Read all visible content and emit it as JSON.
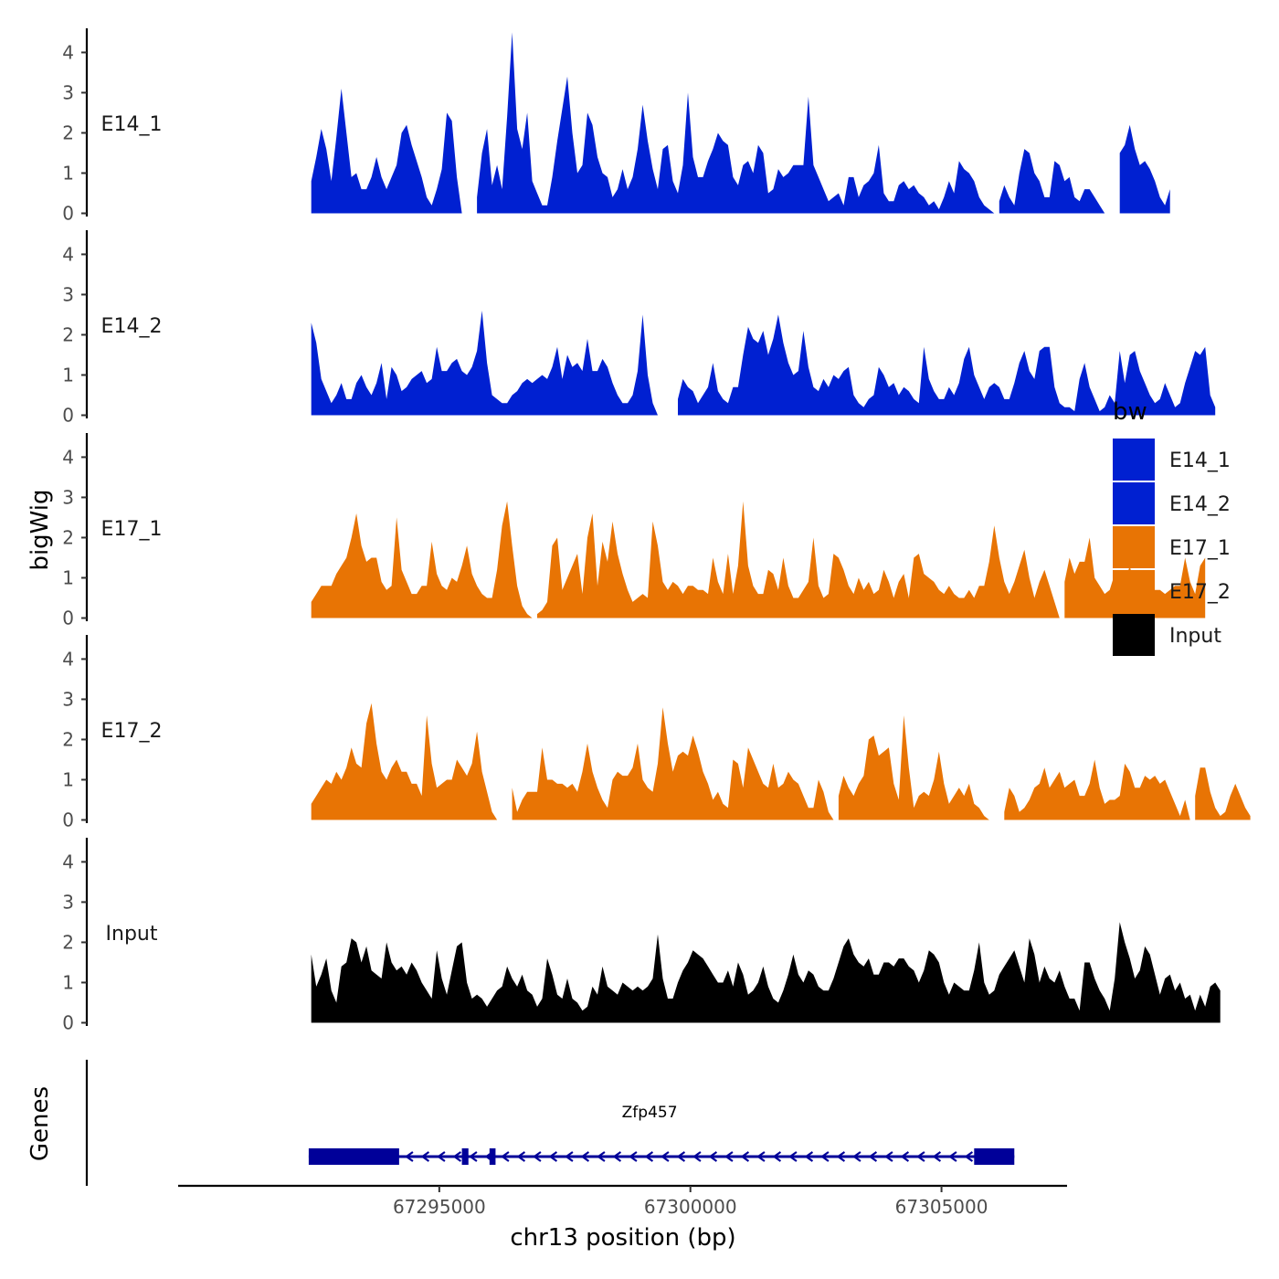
{
  "chart_data": {
    "type": "area",
    "region": "chr13",
    "xlabel": "chr13 position (bp)",
    "ylabel": "bigWig",
    "xlim": [
      67289800,
      67307500
    ],
    "ylim": [
      0,
      4.6
    ],
    "x_tick_values": [
      67295000,
      67300000,
      67305000
    ],
    "x_tick_labels": [
      "67295000",
      "67300000",
      "67305000"
    ],
    "y_tick_values": [
      0,
      1,
      2,
      3,
      4
    ],
    "y_tick_labels": [
      "0",
      "1",
      "2",
      "3",
      "4"
    ],
    "genes_label": "Genes",
    "legend": {
      "title": "bw",
      "position": "right"
    },
    "track_start": 67292450,
    "bin_size_bp": 100,
    "series": [
      {
        "name": "E14_1",
        "color": "#0020D1",
        "values": [
          0.8,
          1.4,
          2.1,
          1.6,
          0.8,
          1.9,
          3.1,
          2.0,
          0.9,
          1.0,
          0.6,
          0.6,
          0.9,
          1.4,
          0.9,
          0.6,
          0.9,
          1.2,
          2.0,
          2.2,
          1.7,
          1.3,
          0.9,
          0.4,
          0.2,
          0.6,
          1.1,
          2.5,
          2.3,
          0.9,
          0,
          0,
          0,
          0.4,
          1.5,
          2.1,
          0.7,
          1.2,
          0.6,
          2.4,
          4.5,
          2.1,
          1.6,
          2.5,
          0.8,
          0.5,
          0.2,
          0.2,
          0.9,
          1.8,
          2.6,
          3.4,
          2.0,
          1.0,
          1.2,
          2.5,
          2.2,
          1.4,
          1.0,
          0.9,
          0.4,
          0.6,
          1.1,
          0.6,
          0.9,
          1.6,
          2.7,
          1.8,
          1.1,
          0.6,
          1.6,
          1.7,
          0.8,
          0.5,
          1.2,
          3.0,
          1.4,
          0.9,
          0.9,
          1.3,
          1.6,
          2.0,
          1.8,
          1.7,
          0.9,
          0.7,
          1.2,
          1.3,
          1.0,
          1.7,
          1.5,
          0.5,
          0.6,
          1.1,
          0.9,
          1.0,
          1.2,
          1.2,
          1.2,
          2.9,
          1.2,
          0.9,
          0.6,
          0.3,
          0.4,
          0.5,
          0.2,
          0.9,
          0.9,
          0.4,
          0.7,
          0.8,
          1.0,
          1.7,
          0.5,
          0.3,
          0.3,
          0.7,
          0.8,
          0.6,
          0.7,
          0.5,
          0.4,
          0.2,
          0.3,
          0.1,
          0.4,
          0.8,
          0.5,
          1.3,
          1.1,
          1.0,
          0.8,
          0.4,
          0.2,
          0.1,
          0,
          0.3,
          0.7,
          0.4,
          0.2,
          1.0,
          1.6,
          1.5,
          1.0,
          0.8,
          0.4,
          0.4,
          1.3,
          1.2,
          0.8,
          0.9,
          0.4,
          0.3,
          0.6,
          0.6,
          0.4,
          0.2,
          0,
          0,
          0,
          1.5,
          1.7,
          2.2,
          1.6,
          1.2,
          1.3,
          1.1,
          0.8,
          0.4,
          0.2,
          0.6
        ]
      },
      {
        "name": "E14_2",
        "color": "#0020D1",
        "values": [
          2.3,
          1.8,
          0.9,
          0.6,
          0.3,
          0.5,
          0.8,
          0.4,
          0.4,
          0.8,
          1.0,
          0.7,
          0.5,
          0.8,
          1.3,
          0.4,
          1.2,
          1.0,
          0.6,
          0.7,
          0.9,
          1.0,
          1.1,
          0.8,
          0.9,
          1.7,
          1.1,
          1.1,
          1.3,
          1.4,
          1.1,
          1.0,
          1.2,
          1.6,
          2.6,
          1.3,
          0.5,
          0.4,
          0.3,
          0.3,
          0.5,
          0.6,
          0.8,
          0.9,
          0.8,
          0.9,
          1.0,
          0.9,
          1.2,
          1.7,
          0.9,
          1.5,
          1.2,
          1.3,
          1.1,
          1.9,
          1.1,
          1.1,
          1.4,
          1.2,
          0.8,
          0.5,
          0.3,
          0.3,
          0.5,
          1.1,
          2.5,
          1.0,
          0.3,
          0,
          0,
          0,
          0,
          0.4,
          0.9,
          0.7,
          0.6,
          0.3,
          0.5,
          0.7,
          1.3,
          0.6,
          0.4,
          0.3,
          0.7,
          0.7,
          1.5,
          2.2,
          1.9,
          1.8,
          2.1,
          1.5,
          1.9,
          2.5,
          1.8,
          1.3,
          1.0,
          1.1,
          2.1,
          1.2,
          0.7,
          0.6,
          0.9,
          0.7,
          1.0,
          0.9,
          1.1,
          1.2,
          0.5,
          0.3,
          0.2,
          0.4,
          0.5,
          1.2,
          1.0,
          0.7,
          0.8,
          0.5,
          0.7,
          0.6,
          0.4,
          0.3,
          1.7,
          0.9,
          0.6,
          0.4,
          0.4,
          0.7,
          0.5,
          0.8,
          1.4,
          1.7,
          1.0,
          0.7,
          0.4,
          0.7,
          0.8,
          0.7,
          0.4,
          0.4,
          0.8,
          1.3,
          1.6,
          1.1,
          0.9,
          1.6,
          1.7,
          1.7,
          0.7,
          0.3,
          0.2,
          0.2,
          0.1,
          0.9,
          1.3,
          0.7,
          0.4,
          0.1,
          0.2,
          0.5,
          0.3,
          1.6,
          0.8,
          1.5,
          1.6,
          1.1,
          0.8,
          0.5,
          0.3,
          0.4,
          0.8,
          0.5,
          0.2,
          0.3,
          0.8,
          1.2,
          1.6,
          1.5,
          1.7,
          0.5,
          0.2
        ]
      },
      {
        "name": "E17_1",
        "color": "#E87404",
        "values": [
          0.4,
          0.6,
          0.8,
          0.8,
          0.8,
          1.1,
          1.3,
          1.5,
          2.0,
          2.6,
          1.8,
          1.4,
          1.5,
          1.5,
          0.9,
          0.7,
          0.8,
          2.5,
          1.2,
          0.9,
          0.6,
          0.6,
          0.8,
          0.8,
          1.9,
          1.1,
          0.8,
          0.7,
          1.0,
          0.9,
          1.3,
          1.8,
          1.1,
          0.8,
          0.6,
          0.5,
          0.5,
          1.2,
          2.3,
          2.9,
          1.8,
          0.8,
          0.3,
          0.1,
          0,
          0.1,
          0.2,
          0.4,
          1.8,
          2.0,
          0.7,
          1.0,
          1.3,
          1.6,
          0.6,
          2.0,
          2.6,
          0.8,
          1.9,
          1.4,
          2.4,
          1.6,
          1.1,
          0.7,
          0.4,
          0.5,
          0.6,
          0.5,
          2.4,
          1.8,
          0.9,
          0.7,
          0.9,
          0.8,
          0.6,
          0.8,
          0.8,
          0.7,
          0.7,
          0.6,
          1.5,
          0.9,
          0.6,
          1.6,
          0.6,
          1.3,
          2.9,
          1.3,
          0.8,
          0.6,
          0.6,
          1.2,
          1.1,
          0.7,
          1.5,
          0.8,
          0.5,
          0.5,
          0.7,
          0.9,
          2.0,
          0.8,
          0.5,
          0.6,
          1.6,
          1.5,
          1.2,
          0.8,
          0.6,
          1.0,
          0.7,
          0.9,
          0.6,
          0.7,
          1.2,
          0.9,
          0.5,
          0.9,
          1.1,
          0.5,
          1.5,
          1.6,
          1.1,
          1.0,
          0.9,
          0.7,
          0.6,
          0.8,
          0.6,
          0.5,
          0.5,
          0.7,
          0.5,
          0.8,
          0.8,
          1.4,
          2.3,
          1.5,
          0.9,
          0.6,
          0.9,
          1.3,
          1.7,
          1.0,
          0.5,
          0.9,
          1.2,
          0.8,
          0.4,
          0,
          0.9,
          1.5,
          1.1,
          1.4,
          1.4,
          2.0,
          1.0,
          0.8,
          0.6,
          0.7,
          1.1,
          1.0,
          0.9,
          1.3,
          0.7,
          0.6,
          0.7,
          0.9,
          0.7,
          0.7,
          0.6,
          0.7,
          0.8,
          0.8,
          1.5,
          0.9,
          0.6,
          1.3,
          1.5
        ]
      },
      {
        "name": "E17_2",
        "color": "#E87404",
        "values": [
          0.4,
          0.6,
          0.8,
          1.0,
          0.9,
          1.2,
          1.0,
          1.3,
          1.8,
          1.4,
          1.3,
          2.4,
          2.9,
          1.9,
          1.2,
          1.0,
          1.3,
          1.5,
          1.2,
          1.2,
          0.9,
          0.9,
          0.6,
          2.6,
          1.4,
          0.8,
          0.9,
          1.0,
          1.0,
          1.5,
          1.3,
          1.1,
          1.4,
          2.2,
          1.2,
          0.7,
          0.2,
          0,
          0,
          0,
          0.8,
          0.2,
          0.5,
          0.7,
          0.7,
          0.7,
          1.8,
          1.0,
          1.0,
          0.9,
          0.9,
          0.8,
          0.9,
          0.7,
          1.2,
          1.9,
          1.2,
          0.8,
          0.5,
          0.3,
          1.0,
          1.2,
          1.1,
          1.1,
          1.3,
          1.9,
          1.0,
          0.8,
          0.7,
          1.4,
          2.8,
          1.9,
          1.2,
          1.6,
          1.7,
          1.6,
          2.1,
          1.7,
          1.2,
          0.9,
          0.5,
          0.7,
          0.4,
          0.3,
          1.5,
          1.4,
          0.8,
          1.8,
          1.5,
          1.2,
          0.9,
          0.8,
          1.4,
          0.8,
          0.9,
          1.2,
          1.0,
          0.9,
          0.6,
          0.3,
          0.3,
          1.0,
          0.7,
          0.2,
          0,
          0.6,
          1.1,
          0.8,
          0.6,
          0.9,
          1.1,
          2.0,
          2.1,
          1.6,
          1.7,
          1.8,
          0.9,
          0.5,
          2.6,
          1.3,
          0.3,
          0.6,
          0.7,
          0.6,
          1.0,
          1.7,
          0.9,
          0.4,
          0.6,
          0.8,
          0.6,
          0.9,
          0.4,
          0.3,
          0.1,
          0,
          0,
          0,
          0.2,
          0.8,
          0.6,
          0.2,
          0.3,
          0.5,
          0.8,
          0.9,
          1.3,
          0.8,
          1.0,
          1.2,
          0.8,
          0.9,
          1.0,
          0.6,
          0.6,
          0.9,
          1.5,
          0.8,
          0.4,
          0.5,
          0.5,
          0.6,
          1.4,
          1.2,
          0.8,
          0.8,
          1.1,
          1.0,
          1.1,
          0.9,
          1.0,
          0.7,
          0.4,
          0.1,
          0.5,
          0,
          0.6,
          1.3,
          1.3,
          0.7,
          0.3,
          0.1,
          0.2,
          0.6,
          0.9,
          0.6,
          0.3,
          0.1
        ]
      },
      {
        "name": "Input",
        "color": "#000000",
        "values": [
          1.7,
          0.9,
          1.2,
          1.6,
          0.8,
          0.5,
          1.4,
          1.5,
          2.1,
          2.0,
          1.5,
          1.9,
          1.3,
          1.2,
          1.1,
          2.0,
          1.5,
          1.3,
          1.4,
          1.2,
          1.5,
          1.3,
          1.0,
          0.8,
          0.6,
          1.8,
          1.1,
          0.7,
          1.3,
          1.9,
          2.0,
          1.0,
          0.6,
          0.7,
          0.6,
          0.4,
          0.6,
          0.8,
          0.9,
          1.4,
          1.1,
          0.9,
          1.2,
          0.8,
          0.7,
          0.4,
          0.6,
          1.6,
          1.2,
          0.7,
          0.6,
          1.1,
          0.6,
          0.5,
          0.3,
          0.4,
          0.9,
          0.7,
          1.4,
          0.9,
          0.8,
          0.7,
          1.0,
          0.9,
          0.8,
          0.9,
          0.8,
          0.9,
          1.1,
          2.2,
          1.1,
          0.6,
          0.6,
          1.0,
          1.3,
          1.5,
          1.8,
          1.7,
          1.6,
          1.4,
          1.2,
          1.0,
          1.0,
          1.3,
          0.9,
          1.5,
          1.2,
          0.7,
          0.8,
          1.0,
          1.4,
          0.9,
          0.6,
          0.5,
          0.8,
          1.2,
          1.7,
          1.2,
          1.0,
          1.3,
          1.2,
          0.9,
          0.8,
          0.8,
          1.1,
          1.5,
          1.9,
          2.1,
          1.7,
          1.5,
          1.4,
          1.6,
          1.2,
          1.2,
          1.5,
          1.5,
          1.4,
          1.6,
          1.6,
          1.4,
          1.3,
          1.0,
          1.3,
          1.8,
          1.7,
          1.5,
          1.0,
          0.7,
          1.0,
          0.9,
          0.8,
          0.8,
          1.3,
          2.0,
          1.0,
          0.7,
          0.8,
          1.2,
          1.4,
          1.6,
          1.8,
          1.4,
          1.0,
          2.1,
          1.7,
          1.0,
          1.4,
          1.1,
          1.0,
          1.3,
          0.9,
          0.6,
          0.6,
          0.3,
          1.5,
          1.5,
          1.1,
          0.8,
          0.6,
          0.3,
          1.1,
          2.5,
          2.0,
          1.6,
          1.1,
          1.3,
          1.9,
          1.7,
          1.2,
          0.7,
          1.1,
          1.2,
          0.8,
          1.0,
          0.6,
          0.7,
          0.3,
          0.7,
          0.4,
          0.9,
          1.0,
          0.8
        ]
      }
    ],
    "genes": [
      {
        "name": "Zfp457",
        "start": 67292400,
        "end": 67306450,
        "strand": "-",
        "color": "#000099",
        "exons": [
          {
            "start": 67292400,
            "end": 67294200,
            "type": "utr"
          },
          {
            "start": 67295450,
            "end": 67295580,
            "type": "cds"
          },
          {
            "start": 67296000,
            "end": 67296120,
            "type": "cds"
          },
          {
            "start": 67305650,
            "end": 67306450,
            "type": "utr"
          }
        ]
      }
    ]
  }
}
